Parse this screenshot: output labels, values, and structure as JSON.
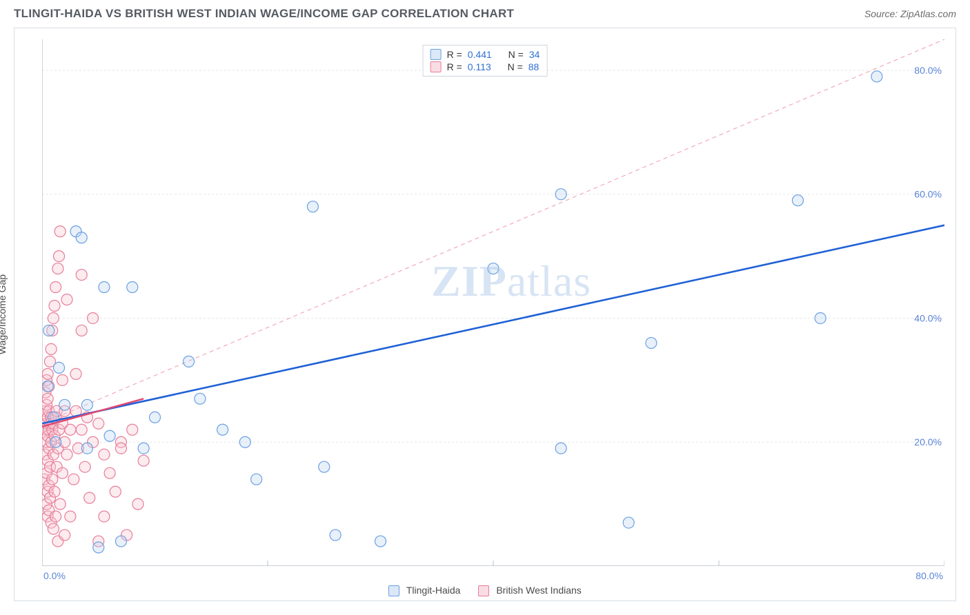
{
  "header": {
    "title": "TLINGIT-HAIDA VS BRITISH WEST INDIAN WAGE/INCOME GAP CORRELATION CHART",
    "source": "Source: ZipAtlas.com"
  },
  "chart": {
    "type": "scatter",
    "y_axis_label": "Wage/Income Gap",
    "xlim": [
      0,
      80
    ],
    "ylim": [
      0,
      85
    ],
    "x_ticks": [
      0,
      20,
      40,
      60,
      80
    ],
    "y_ticks": [
      20,
      40,
      60,
      80
    ],
    "x_tick_start_label": "0.0%",
    "x_tick_end_label": "80.0%",
    "y_tick_labels": [
      "20.0%",
      "40.0%",
      "60.0%",
      "80.0%"
    ],
    "y_tick_color": "#5b84d6",
    "x_tick_color": "#5b84d6",
    "grid_color": "#e3e6ea",
    "axis_color": "#b9c1c9",
    "background_color": "#ffffff",
    "marker_radius": 8,
    "marker_stroke_width": 1.2,
    "marker_fill_opacity": 0.35,
    "diagonal_guide": {
      "color": "#f4a8b8",
      "dash": "6,5",
      "width": 1.2,
      "from": [
        0,
        23
      ],
      "to": [
        80,
        85
      ]
    },
    "watermark": {
      "zip": "ZIP",
      "rest": "atlas"
    },
    "series": [
      {
        "name": "Tlingit-Haida",
        "color_stroke": "#6aa0e2",
        "color_fill": "#bcd5f2",
        "legend_swatch_fill": "#dbe8f8",
        "legend_swatch_border": "#6aa0e2",
        "stats": {
          "R": "0.441",
          "N": "34"
        },
        "trend": {
          "from": [
            0,
            23
          ],
          "to": [
            80,
            55
          ],
          "color": "#1f61d6",
          "width": 2.6,
          "dash": null
        },
        "points": [
          [
            0.5,
            29
          ],
          [
            0.6,
            38
          ],
          [
            1,
            24
          ],
          [
            1.2,
            20
          ],
          [
            1.5,
            32
          ],
          [
            2,
            26
          ],
          [
            3,
            54
          ],
          [
            3.5,
            53
          ],
          [
            4,
            26
          ],
          [
            4,
            19
          ],
          [
            5,
            3
          ],
          [
            5.5,
            45
          ],
          [
            6,
            21
          ],
          [
            7,
            4
          ],
          [
            8,
            45
          ],
          [
            9,
            19
          ],
          [
            10,
            24
          ],
          [
            13,
            33
          ],
          [
            14,
            27
          ],
          [
            16,
            22
          ],
          [
            18,
            20
          ],
          [
            19,
            14
          ],
          [
            24,
            58
          ],
          [
            25,
            16
          ],
          [
            26,
            5
          ],
          [
            40,
            48
          ],
          [
            46,
            60
          ],
          [
            46,
            19
          ],
          [
            52,
            7
          ],
          [
            54,
            36
          ],
          [
            67,
            59
          ],
          [
            69,
            40
          ],
          [
            74,
            79
          ],
          [
            30,
            4
          ]
        ]
      },
      {
        "name": "British West Indians",
        "color_stroke": "#e87d98",
        "color_fill": "#f7c6d2",
        "legend_swatch_fill": "#fadce4",
        "legend_swatch_border": "#e87d98",
        "stats": {
          "R": "0.113",
          "N": "88"
        },
        "trend": {
          "from": [
            0,
            22.5
          ],
          "to": [
            9,
            27
          ],
          "color": "#e3476f",
          "width": 2.4,
          "dash": null
        },
        "points": [
          [
            0.2,
            14
          ],
          [
            0.3,
            18
          ],
          [
            0.3,
            22
          ],
          [
            0.3,
            25
          ],
          [
            0.3,
            28
          ],
          [
            0.4,
            10
          ],
          [
            0.4,
            15
          ],
          [
            0.4,
            20
          ],
          [
            0.4,
            23
          ],
          [
            0.4,
            26
          ],
          [
            0.4,
            30
          ],
          [
            0.5,
            8
          ],
          [
            0.5,
            12
          ],
          [
            0.5,
            17
          ],
          [
            0.5,
            21
          ],
          [
            0.5,
            24
          ],
          [
            0.5,
            27
          ],
          [
            0.5,
            31
          ],
          [
            0.6,
            9
          ],
          [
            0.6,
            13
          ],
          [
            0.6,
            19
          ],
          [
            0.6,
            22
          ],
          [
            0.6,
            25
          ],
          [
            0.6,
            29
          ],
          [
            0.7,
            11
          ],
          [
            0.7,
            16
          ],
          [
            0.7,
            23
          ],
          [
            0.7,
            33
          ],
          [
            0.8,
            7
          ],
          [
            0.8,
            20
          ],
          [
            0.8,
            24
          ],
          [
            0.8,
            35
          ],
          [
            0.9,
            14
          ],
          [
            0.9,
            22
          ],
          [
            0.9,
            38
          ],
          [
            1.0,
            6
          ],
          [
            1.0,
            18
          ],
          [
            1.0,
            23
          ],
          [
            1.0,
            40
          ],
          [
            1.1,
            12
          ],
          [
            1.1,
            21
          ],
          [
            1.1,
            42
          ],
          [
            1.2,
            8
          ],
          [
            1.2,
            24
          ],
          [
            1.2,
            45
          ],
          [
            1.3,
            16
          ],
          [
            1.3,
            25
          ],
          [
            1.4,
            4
          ],
          [
            1.4,
            19
          ],
          [
            1.4,
            48
          ],
          [
            1.5,
            22
          ],
          [
            1.5,
            50
          ],
          [
            1.6,
            10
          ],
          [
            1.6,
            54
          ],
          [
            1.8,
            15
          ],
          [
            1.8,
            23
          ],
          [
            1.8,
            30
          ],
          [
            2.0,
            5
          ],
          [
            2.0,
            20
          ],
          [
            2.0,
            25
          ],
          [
            2.2,
            18
          ],
          [
            2.2,
            43
          ],
          [
            2.5,
            8
          ],
          [
            2.5,
            22
          ],
          [
            2.8,
            14
          ],
          [
            3.0,
            25
          ],
          [
            3.0,
            31
          ],
          [
            3.2,
            19
          ],
          [
            3.5,
            22
          ],
          [
            3.5,
            38
          ],
          [
            3.5,
            47
          ],
          [
            3.8,
            16
          ],
          [
            4.0,
            24
          ],
          [
            4.2,
            11
          ],
          [
            4.5,
            20
          ],
          [
            4.5,
            40
          ],
          [
            5.0,
            4
          ],
          [
            5.0,
            23
          ],
          [
            5.5,
            18
          ],
          [
            5.5,
            8
          ],
          [
            6.0,
            15
          ],
          [
            6.5,
            12
          ],
          [
            7.0,
            20
          ],
          [
            7.0,
            19
          ],
          [
            7.5,
            5
          ],
          [
            8.0,
            22
          ],
          [
            8.5,
            10
          ],
          [
            9.0,
            17
          ]
        ]
      }
    ],
    "footer_legend": [
      {
        "label": "Tlingit-Haida",
        "fill": "#dbe8f8",
        "border": "#6aa0e2"
      },
      {
        "label": "British West Indians",
        "fill": "#fadce4",
        "border": "#e87d98"
      }
    ],
    "stats_value_color": "#2f6fd0"
  }
}
